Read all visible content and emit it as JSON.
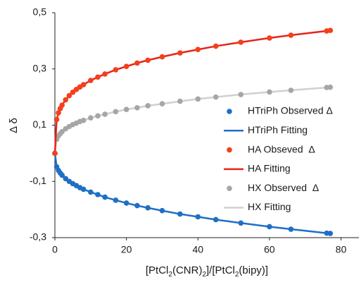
{
  "chart_data": {
    "type": "scatter",
    "ylabel": "Δ δ",
    "xlabel": [
      "[PtCl",
      "2",
      "(CNR)",
      "2",
      "]/[PtCl",
      "2",
      "(bipy)]"
    ],
    "xlim": [
      0,
      85
    ],
    "ylim": [
      -0.3,
      0.5
    ],
    "xticks": [
      0,
      20,
      40,
      60,
      80
    ],
    "yticks": [
      {
        "value": -0.3,
        "label": "-0,3"
      },
      {
        "value": -0.1,
        "label": "-0,1"
      },
      {
        "value": 0.1,
        "label": "0,1"
      },
      {
        "value": 0.3,
        "label": "0,3"
      },
      {
        "value": 0.5,
        "label": "0,5"
      }
    ],
    "grid": false,
    "legend": "right",
    "x": [
      0,
      0.5,
      1,
      1.5,
      2,
      3,
      4,
      5,
      6,
      7,
      8,
      10,
      12,
      14,
      17,
      20,
      23,
      26,
      30,
      35,
      40,
      45,
      52,
      60,
      66,
      76,
      77
    ],
    "series": [
      {
        "name": "HTriPh Observed Δ",
        "color": "#1f6fc5",
        "style": "points",
        "values": [
          0,
          -0.048,
          -0.061,
          -0.07,
          -0.078,
          -0.09,
          -0.1,
          -0.108,
          -0.115,
          -0.122,
          -0.128,
          -0.138,
          -0.147,
          -0.156,
          -0.167,
          -0.177,
          -0.186,
          -0.194,
          -0.204,
          -0.216,
          -0.226,
          -0.236,
          -0.248,
          -0.261,
          -0.27,
          -0.284,
          -0.285
        ]
      },
      {
        "name": "HTriPh Fitting",
        "color": "#1f6fc5",
        "style": "line",
        "values": [
          0,
          -0.048,
          -0.061,
          -0.07,
          -0.078,
          -0.09,
          -0.1,
          -0.108,
          -0.115,
          -0.122,
          -0.128,
          -0.138,
          -0.147,
          -0.156,
          -0.167,
          -0.177,
          -0.186,
          -0.194,
          -0.204,
          -0.216,
          -0.226,
          -0.236,
          -0.248,
          -0.261,
          -0.27,
          -0.284,
          -0.285
        ]
      },
      {
        "name": "HA Obseved  Δ",
        "color": "#f2401c",
        "style": "points",
        "values": [
          0,
          0.12,
          0.144,
          0.159,
          0.171,
          0.19,
          0.205,
          0.217,
          0.227,
          0.236,
          0.244,
          0.259,
          0.271,
          0.282,
          0.297,
          0.309,
          0.321,
          0.331,
          0.343,
          0.357,
          0.369,
          0.381,
          0.395,
          0.41,
          0.42,
          0.435,
          0.437
        ]
      },
      {
        "name": "HA Fitting",
        "color": "#e8241a",
        "style": "line",
        "values": [
          0,
          0.12,
          0.144,
          0.159,
          0.171,
          0.19,
          0.205,
          0.217,
          0.227,
          0.236,
          0.244,
          0.259,
          0.271,
          0.282,
          0.297,
          0.309,
          0.321,
          0.331,
          0.343,
          0.357,
          0.369,
          0.381,
          0.395,
          0.41,
          0.42,
          0.435,
          0.437
        ]
      },
      {
        "name": "HX Observed  Δ",
        "color": "#a6a6a6",
        "style": "points",
        "values": [
          0,
          0.05,
          0.062,
          0.07,
          0.077,
          0.087,
          0.095,
          0.102,
          0.107,
          0.113,
          0.117,
          0.126,
          0.133,
          0.139,
          0.148,
          0.156,
          0.162,
          0.169,
          0.176,
          0.185,
          0.193,
          0.2,
          0.209,
          0.218,
          0.224,
          0.234,
          0.235
        ]
      },
      {
        "name": "HX Fitting",
        "color": "#d0d0d0",
        "style": "line",
        "values": [
          0,
          0.05,
          0.062,
          0.07,
          0.077,
          0.087,
          0.095,
          0.102,
          0.107,
          0.113,
          0.117,
          0.126,
          0.133,
          0.139,
          0.148,
          0.156,
          0.162,
          0.169,
          0.176,
          0.185,
          0.193,
          0.2,
          0.209,
          0.218,
          0.224,
          0.234,
          0.235
        ]
      }
    ]
  }
}
